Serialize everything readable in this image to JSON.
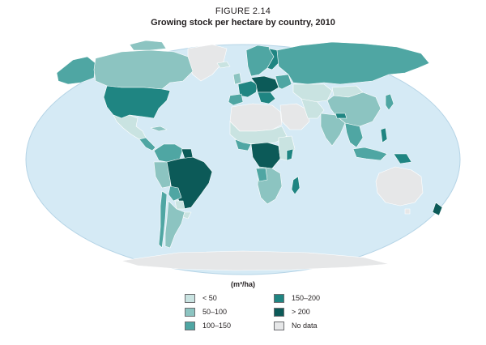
{
  "figure": {
    "label": "FIGURE 2.14",
    "title": "Growing stock per hectare by country, 2010"
  },
  "legend": {
    "title": "(m³/ha)",
    "items": [
      {
        "label": "< 50",
        "color": "#c9e3e1"
      },
      {
        "label": "50–100",
        "color": "#8cc4c1"
      },
      {
        "label": "100–150",
        "color": "#4fa6a3"
      },
      {
        "label": "150–200",
        "color": "#1f8582"
      },
      {
        "label": "> 200",
        "color": "#0c5a58"
      },
      {
        "label": "No data",
        "color": "#e6e7e8"
      }
    ]
  },
  "colors": {
    "ocean": "#d5eaf5",
    "ocean_border": "#b5d4e6",
    "country_border": "#ffffff"
  }
}
